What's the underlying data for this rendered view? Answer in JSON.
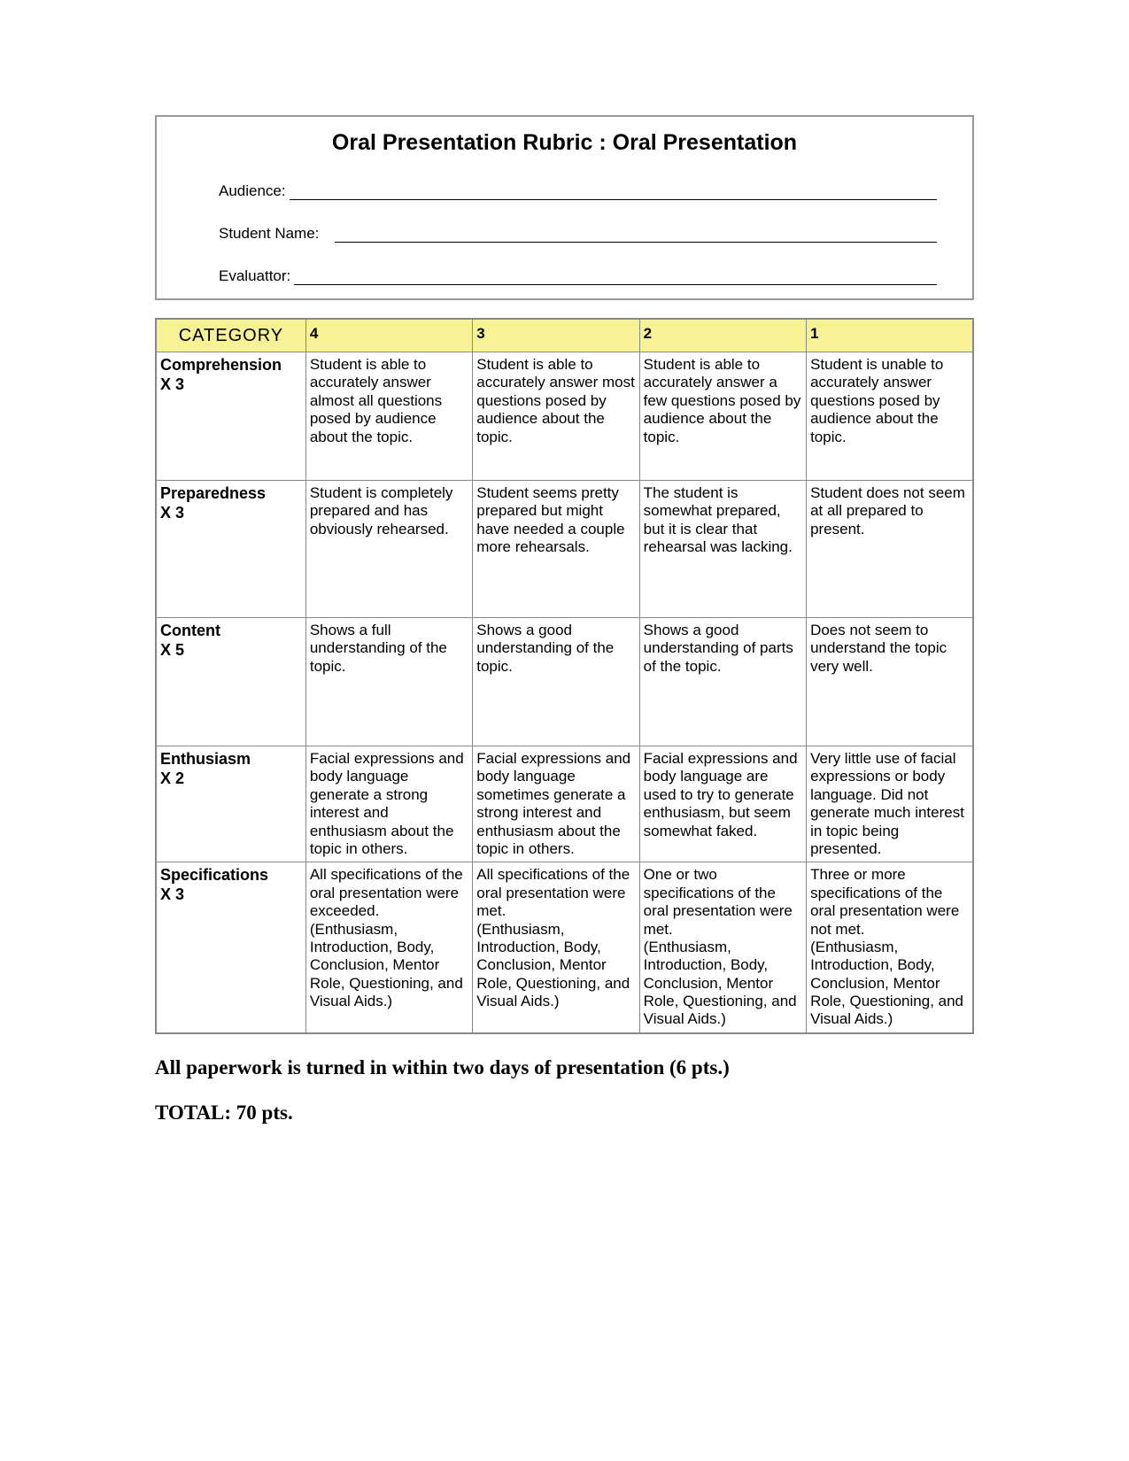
{
  "header": {
    "title": "Oral Presentation Rubric : Oral Presentation",
    "fields": {
      "audience_label": "Audience:",
      "student_label": "Student Name:",
      "evaluator_label": "Evaluattor:"
    }
  },
  "rubric": {
    "columns": {
      "category": "CATEGORY",
      "c4": "4",
      "c3": "3",
      "c2": "2",
      "c1": "1"
    },
    "header_bg": "#f7f296",
    "border_color": "#888888",
    "rows": [
      {
        "category": "Comprehension\nX 3",
        "c4": "Student is able to accurately answer almost all questions posed by audience about the topic.",
        "c3": "Student is able to accurately answer most questions posed by audience about the topic.",
        "c2": "Student is able to accurately answer a few questions posed by audience about the topic.",
        "c1": "Student is unable to accurately answer questions posed by audience  about the topic.",
        "height_class": "row-tall"
      },
      {
        "category": "Preparedness\nX 3",
        "c4": "Student is completely prepared and has obviously rehearsed.",
        "c3": "Student seems pretty prepared but might have needed a couple more rehearsals.",
        "c2": "The student is somewhat prepared, but it is clear that rehearsal was lacking.",
        "c1": "Student does not seem at all prepared to present.",
        "height_class": "row-medium"
      },
      {
        "category": "Content\nX 5",
        "c4": "Shows a full understanding of the topic.",
        "c3": "Shows a good understanding of the topic.",
        "c2": "Shows a good understanding of parts of the topic.",
        "c1": "Does not seem to understand the topic very well.",
        "height_class": "row-content"
      },
      {
        "category": "Enthusiasm\nX 2",
        "c4": "Facial expressions and body language generate a strong interest and enthusiasm about the topic in others.",
        "c3": "Facial expressions and body language sometimes generate a strong interest and enthusiasm about the topic in others.",
        "c2": "Facial expressions and body language are used to try to generate enthusiasm, but seem somewhat faked.",
        "c1": "Very little use of facial expressions or body language. Did not generate much interest in topic being presented.",
        "height_class": "row-enthusiasm"
      },
      {
        "category": "Specifications\nX 3",
        "c4": "All specifications of the oral presentation were exceeded. (Enthusiasm, Introduction, Body, Conclusion, Mentor Role, Questioning, and Visual Aids.)",
        "c3": "All specifications of the oral presentation were met.\n(Enthusiasm, Introduction, Body, Conclusion, Mentor Role, Questioning, and Visual Aids.)",
        "c2": "One or two specifications of the oral presentation were met.\n(Enthusiasm, Introduction, Body, Conclusion, Mentor Role, Questioning, and Visual Aids.)",
        "c1": "Three or more specifications of the oral presentation were not met.\n(Enthusiasm, Introduction, Body, Conclusion, Mentor Role, Questioning, and Visual Aids.)",
        "height_class": "row-spec"
      }
    ]
  },
  "footer": {
    "paperwork": "All paperwork is turned in within two days of presentation  (6 pts.)",
    "total": "TOTAL:  70 pts."
  }
}
